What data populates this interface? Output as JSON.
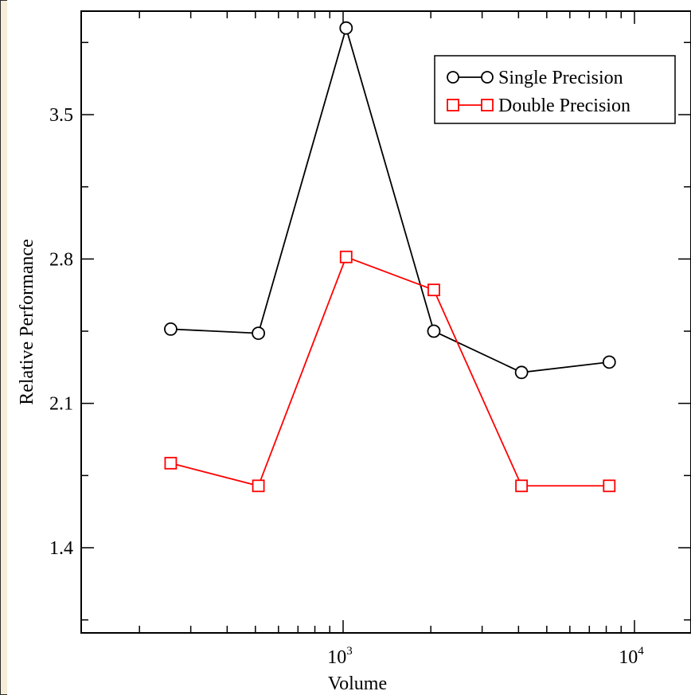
{
  "chart_data": {
    "type": "line",
    "x_scale": "log",
    "xlabel": "Volume",
    "ylabel": "Relative Performance",
    "x_tick_labels": [
      {
        "value": 1000,
        "base": "10",
        "exp": "3"
      },
      {
        "value": 10000,
        "base": "10",
        "exp": "4"
      }
    ],
    "y_ticks": [
      1.4,
      2.1,
      2.8,
      3.5
    ],
    "y_tick_labels": [
      "1.4",
      "2.1",
      "2.8",
      "3.5"
    ],
    "ylim": [
      1.05,
      4.0
    ],
    "xlim": [
      128,
      16384
    ],
    "legend_position": "top-right",
    "x": [
      256,
      512,
      1024,
      2048,
      4096,
      8192
    ],
    "series": [
      {
        "name": "Single Precision",
        "color": "#000000",
        "marker": "circle",
        "values": [
          2.46,
          2.44,
          3.92,
          2.45,
          2.25,
          2.3
        ]
      },
      {
        "name": "Double Precision",
        "color": "#ff0000",
        "marker": "square",
        "values": [
          1.81,
          1.7,
          2.81,
          2.65,
          1.7,
          1.7
        ]
      }
    ]
  }
}
